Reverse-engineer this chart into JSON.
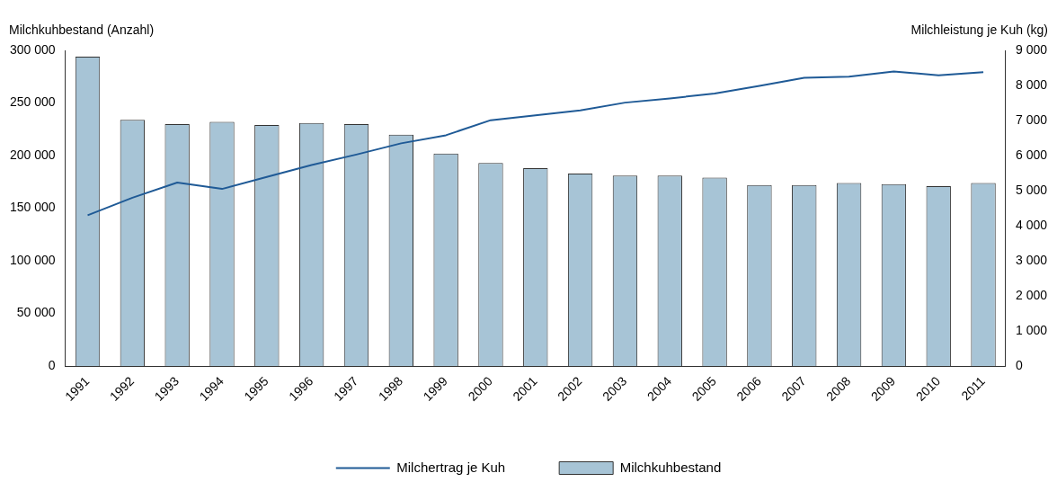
{
  "chart_data": {
    "type": "bar",
    "ylabel": "Milchkuhbestand (Anzahl)",
    "y2label": "Milchleistung je Kuh (kg)",
    "categories": [
      "1991",
      "1992",
      "1993",
      "1994",
      "1995",
      "1996",
      "1997",
      "1998",
      "1999",
      "2000",
      "2001",
      "2002",
      "2003",
      "2004",
      "2005",
      "2006",
      "2007",
      "2008",
      "2009",
      "2010",
      "2011"
    ],
    "series": [
      {
        "name": "Milchertrag je Kuh",
        "type": "line",
        "axis": "y2",
        "color": "#1f5a96",
        "values": [
          4300,
          4800,
          5230,
          5050,
          5390,
          5730,
          6030,
          6350,
          6580,
          7010,
          7150,
          7290,
          7510,
          7630,
          7770,
          7990,
          8220,
          8250,
          8400,
          8290,
          8380
        ]
      },
      {
        "name": "Milchkuhbestand",
        "color": "#a7c4d6",
        "values": [
          294000,
          234000,
          230000,
          232000,
          229000,
          231000,
          230000,
          220000,
          202000,
          193000,
          188000,
          183000,
          181000,
          181000,
          179000,
          172000,
          172000,
          174000,
          173000,
          171000,
          174000
        ]
      }
    ],
    "ylim": [
      0,
      300000
    ],
    "yticks": [
      0,
      50000,
      100000,
      150000,
      200000,
      250000,
      300000
    ],
    "y2lim": [
      0,
      9000
    ],
    "y2ticks": [
      0,
      1000,
      2000,
      3000,
      4000,
      5000,
      6000,
      7000,
      8000,
      9000
    ],
    "grid": false,
    "legend": "bottom",
    "marker": "none",
    "line_style": "solid"
  }
}
